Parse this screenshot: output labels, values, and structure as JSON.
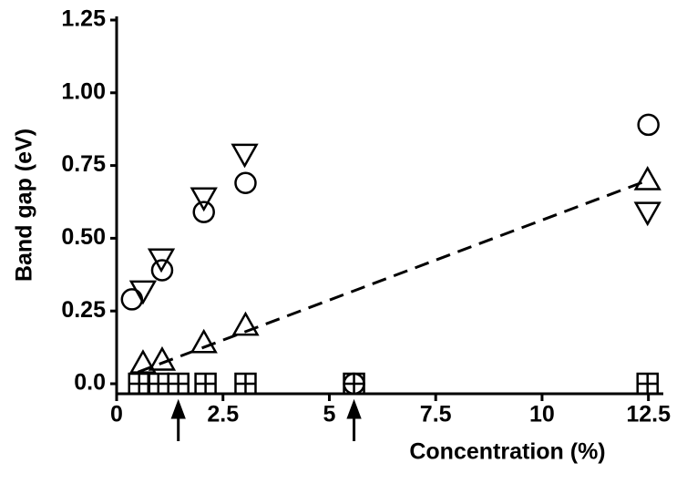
{
  "chart_data": {
    "type": "scatter",
    "xlabel": "Concentration (%)",
    "ylabel": "Band gap (eV)",
    "xlim": [
      0,
      12.85
    ],
    "ylim": [
      -0.0345,
      1.25
    ],
    "xticks": [
      0,
      2.5,
      5,
      7.5,
      10,
      12.5
    ],
    "yticks": [
      {
        "value": 0,
        "label": "0.0"
      },
      0.25,
      {
        "value": 0.5,
        "label": "0.50"
      },
      0.75,
      {
        "value": 1,
        "label": "1.00"
      },
      1.25
    ],
    "series": [
      {
        "marker": "circle",
        "color": "#000000",
        "x": [
          0.36,
          1.07,
          2.05,
          3.03,
          5.58,
          12.5
        ],
        "values": [
          0.29,
          0.39,
          0.59,
          0.69,
          0,
          0.89
        ]
      },
      {
        "marker": "triangle-down",
        "color": "#000000",
        "x": [
          0.62,
          1.05,
          2.05,
          3.01,
          12.48
        ],
        "values": [
          0.32,
          0.43,
          0.64,
          0.79,
          0.59
        ]
      },
      {
        "marker": "triangle-up",
        "color": "#000000",
        "x": [
          0.62,
          1.07,
          2.05,
          3.03,
          12.48
        ],
        "values": [
          0.07,
          0.08,
          0.14,
          0.2,
          0.7
        ]
      },
      {
        "marker": "square-plus",
        "color": "#000000",
        "x": [
          0.53,
          0.98,
          1.45,
          2.09,
          3.03,
          5.58,
          12.48
        ],
        "values": [
          0,
          0,
          0,
          0,
          0,
          0,
          0
        ]
      },
      {
        "marker": "dashed-line",
        "color": "#000000",
        "x": [
          0.5,
          12.5
        ],
        "values": [
          0.04,
          0.7
        ]
      }
    ],
    "arrows_x": [
      1.45,
      5.58
    ]
  }
}
